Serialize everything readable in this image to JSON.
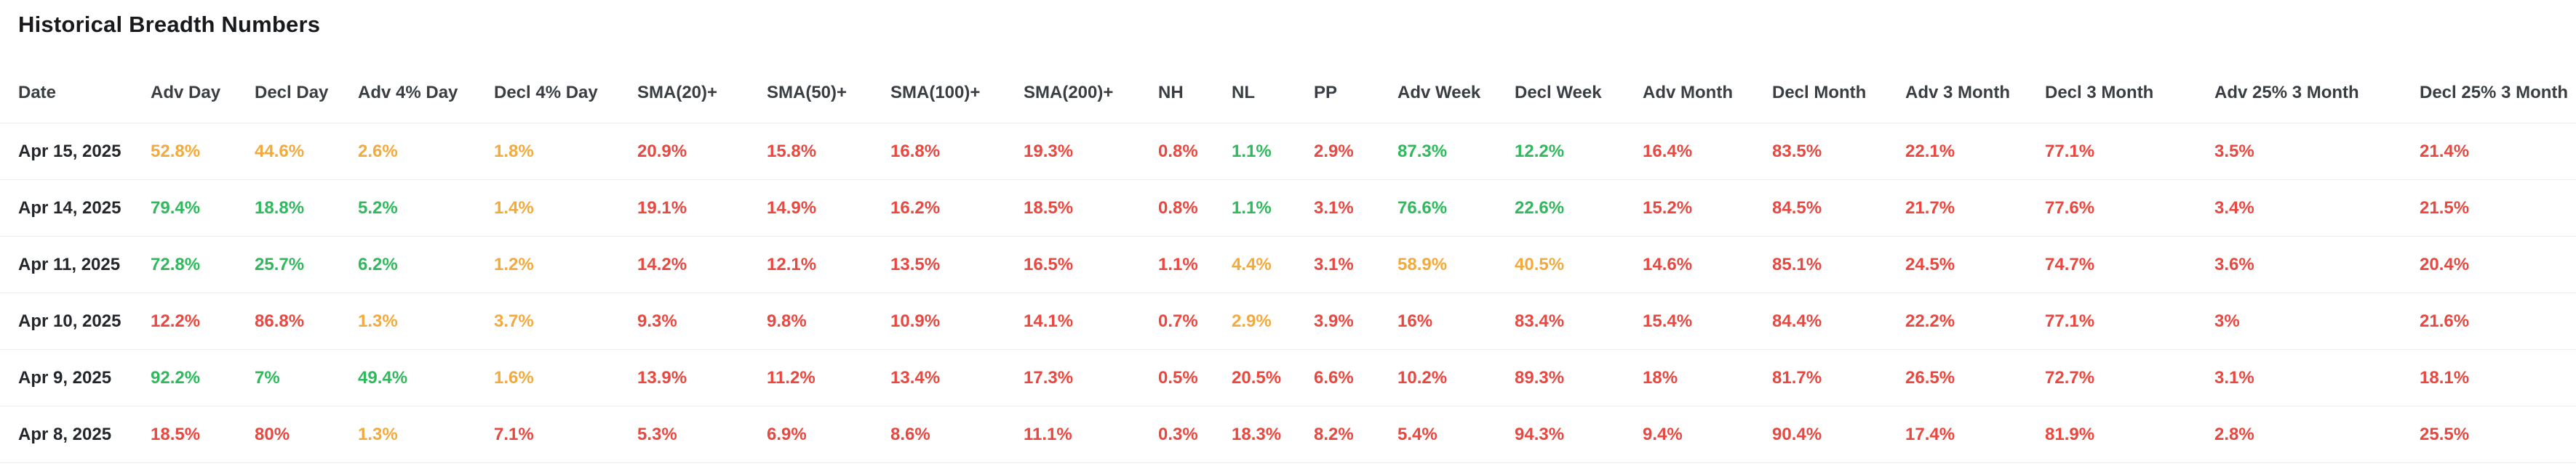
{
  "page": {
    "title": "Historical Breadth Numbers"
  },
  "colors": {
    "green": "#2fb95c",
    "red": "#e9473f",
    "orange": "#f3aa3d",
    "date_text": "#23272b",
    "header_text": "#3a3e43",
    "row_border": "#ececec",
    "background": "#ffffff"
  },
  "table": {
    "columns": [
      "Date",
      "Adv Day",
      "Decl Day",
      "Adv 4% Day",
      "Decl 4% Day",
      "SMA(20)+",
      "SMA(50)+",
      "SMA(100)+",
      "SMA(200)+",
      "NH",
      "NL",
      "PP",
      "Adv Week",
      "Decl Week",
      "Adv Month",
      "Decl Month",
      "Adv 3 Month",
      "Decl 3 Month",
      "Adv 25% 3 Month",
      "Decl 25% 3 Month"
    ],
    "rows": [
      {
        "date": "Apr 15, 2025",
        "cells": [
          {
            "value": "52.8%",
            "color": "orange"
          },
          {
            "value": "44.6%",
            "color": "orange"
          },
          {
            "value": "2.6%",
            "color": "orange"
          },
          {
            "value": "1.8%",
            "color": "orange"
          },
          {
            "value": "20.9%",
            "color": "red"
          },
          {
            "value": "15.8%",
            "color": "red"
          },
          {
            "value": "16.8%",
            "color": "red"
          },
          {
            "value": "19.3%",
            "color": "red"
          },
          {
            "value": "0.8%",
            "color": "red"
          },
          {
            "value": "1.1%",
            "color": "green"
          },
          {
            "value": "2.9%",
            "color": "red"
          },
          {
            "value": "87.3%",
            "color": "green"
          },
          {
            "value": "12.2%",
            "color": "green"
          },
          {
            "value": "16.4%",
            "color": "red"
          },
          {
            "value": "83.5%",
            "color": "red"
          },
          {
            "value": "22.1%",
            "color": "red"
          },
          {
            "value": "77.1%",
            "color": "red"
          },
          {
            "value": "3.5%",
            "color": "red"
          },
          {
            "value": "21.4%",
            "color": "red"
          }
        ]
      },
      {
        "date": "Apr 14, 2025",
        "cells": [
          {
            "value": "79.4%",
            "color": "green"
          },
          {
            "value": "18.8%",
            "color": "green"
          },
          {
            "value": "5.2%",
            "color": "green"
          },
          {
            "value": "1.4%",
            "color": "orange"
          },
          {
            "value": "19.1%",
            "color": "red"
          },
          {
            "value": "14.9%",
            "color": "red"
          },
          {
            "value": "16.2%",
            "color": "red"
          },
          {
            "value": "18.5%",
            "color": "red"
          },
          {
            "value": "0.8%",
            "color": "red"
          },
          {
            "value": "1.1%",
            "color": "green"
          },
          {
            "value": "3.1%",
            "color": "red"
          },
          {
            "value": "76.6%",
            "color": "green"
          },
          {
            "value": "22.6%",
            "color": "green"
          },
          {
            "value": "15.2%",
            "color": "red"
          },
          {
            "value": "84.5%",
            "color": "red"
          },
          {
            "value": "21.7%",
            "color": "red"
          },
          {
            "value": "77.6%",
            "color": "red"
          },
          {
            "value": "3.4%",
            "color": "red"
          },
          {
            "value": "21.5%",
            "color": "red"
          }
        ]
      },
      {
        "date": "Apr 11, 2025",
        "cells": [
          {
            "value": "72.8%",
            "color": "green"
          },
          {
            "value": "25.7%",
            "color": "green"
          },
          {
            "value": "6.2%",
            "color": "green"
          },
          {
            "value": "1.2%",
            "color": "orange"
          },
          {
            "value": "14.2%",
            "color": "red"
          },
          {
            "value": "12.1%",
            "color": "red"
          },
          {
            "value": "13.5%",
            "color": "red"
          },
          {
            "value": "16.5%",
            "color": "red"
          },
          {
            "value": "1.1%",
            "color": "red"
          },
          {
            "value": "4.4%",
            "color": "orange"
          },
          {
            "value": "3.1%",
            "color": "red"
          },
          {
            "value": "58.9%",
            "color": "orange"
          },
          {
            "value": "40.5%",
            "color": "orange"
          },
          {
            "value": "14.6%",
            "color": "red"
          },
          {
            "value": "85.1%",
            "color": "red"
          },
          {
            "value": "24.5%",
            "color": "red"
          },
          {
            "value": "74.7%",
            "color": "red"
          },
          {
            "value": "3.6%",
            "color": "red"
          },
          {
            "value": "20.4%",
            "color": "red"
          }
        ]
      },
      {
        "date": "Apr 10, 2025",
        "cells": [
          {
            "value": "12.2%",
            "color": "red"
          },
          {
            "value": "86.8%",
            "color": "red"
          },
          {
            "value": "1.3%",
            "color": "orange"
          },
          {
            "value": "3.7%",
            "color": "orange"
          },
          {
            "value": "9.3%",
            "color": "red"
          },
          {
            "value": "9.8%",
            "color": "red"
          },
          {
            "value": "10.9%",
            "color": "red"
          },
          {
            "value": "14.1%",
            "color": "red"
          },
          {
            "value": "0.7%",
            "color": "red"
          },
          {
            "value": "2.9%",
            "color": "orange"
          },
          {
            "value": "3.9%",
            "color": "red"
          },
          {
            "value": "16%",
            "color": "red"
          },
          {
            "value": "83.4%",
            "color": "red"
          },
          {
            "value": "15.4%",
            "color": "red"
          },
          {
            "value": "84.4%",
            "color": "red"
          },
          {
            "value": "22.2%",
            "color": "red"
          },
          {
            "value": "77.1%",
            "color": "red"
          },
          {
            "value": "3%",
            "color": "red"
          },
          {
            "value": "21.6%",
            "color": "red"
          }
        ]
      },
      {
        "date": "Apr 9, 2025",
        "cells": [
          {
            "value": "92.2%",
            "color": "green"
          },
          {
            "value": "7%",
            "color": "green"
          },
          {
            "value": "49.4%",
            "color": "green"
          },
          {
            "value": "1.6%",
            "color": "orange"
          },
          {
            "value": "13.9%",
            "color": "red"
          },
          {
            "value": "11.2%",
            "color": "red"
          },
          {
            "value": "13.4%",
            "color": "red"
          },
          {
            "value": "17.3%",
            "color": "red"
          },
          {
            "value": "0.5%",
            "color": "red"
          },
          {
            "value": "20.5%",
            "color": "red"
          },
          {
            "value": "6.6%",
            "color": "red"
          },
          {
            "value": "10.2%",
            "color": "red"
          },
          {
            "value": "89.3%",
            "color": "red"
          },
          {
            "value": "18%",
            "color": "red"
          },
          {
            "value": "81.7%",
            "color": "red"
          },
          {
            "value": "26.5%",
            "color": "red"
          },
          {
            "value": "72.7%",
            "color": "red"
          },
          {
            "value": "3.1%",
            "color": "red"
          },
          {
            "value": "18.1%",
            "color": "red"
          }
        ]
      },
      {
        "date": "Apr 8, 2025",
        "cells": [
          {
            "value": "18.5%",
            "color": "red"
          },
          {
            "value": "80%",
            "color": "red"
          },
          {
            "value": "1.3%",
            "color": "orange"
          },
          {
            "value": "7.1%",
            "color": "red"
          },
          {
            "value": "5.3%",
            "color": "red"
          },
          {
            "value": "6.9%",
            "color": "red"
          },
          {
            "value": "8.6%",
            "color": "red"
          },
          {
            "value": "11.1%",
            "color": "red"
          },
          {
            "value": "0.3%",
            "color": "red"
          },
          {
            "value": "18.3%",
            "color": "red"
          },
          {
            "value": "8.2%",
            "color": "red"
          },
          {
            "value": "5.4%",
            "color": "red"
          },
          {
            "value": "94.3%",
            "color": "red"
          },
          {
            "value": "9.4%",
            "color": "red"
          },
          {
            "value": "90.4%",
            "color": "red"
          },
          {
            "value": "17.4%",
            "color": "red"
          },
          {
            "value": "81.9%",
            "color": "red"
          },
          {
            "value": "2.8%",
            "color": "red"
          },
          {
            "value": "25.5%",
            "color": "red"
          }
        ]
      }
    ]
  }
}
